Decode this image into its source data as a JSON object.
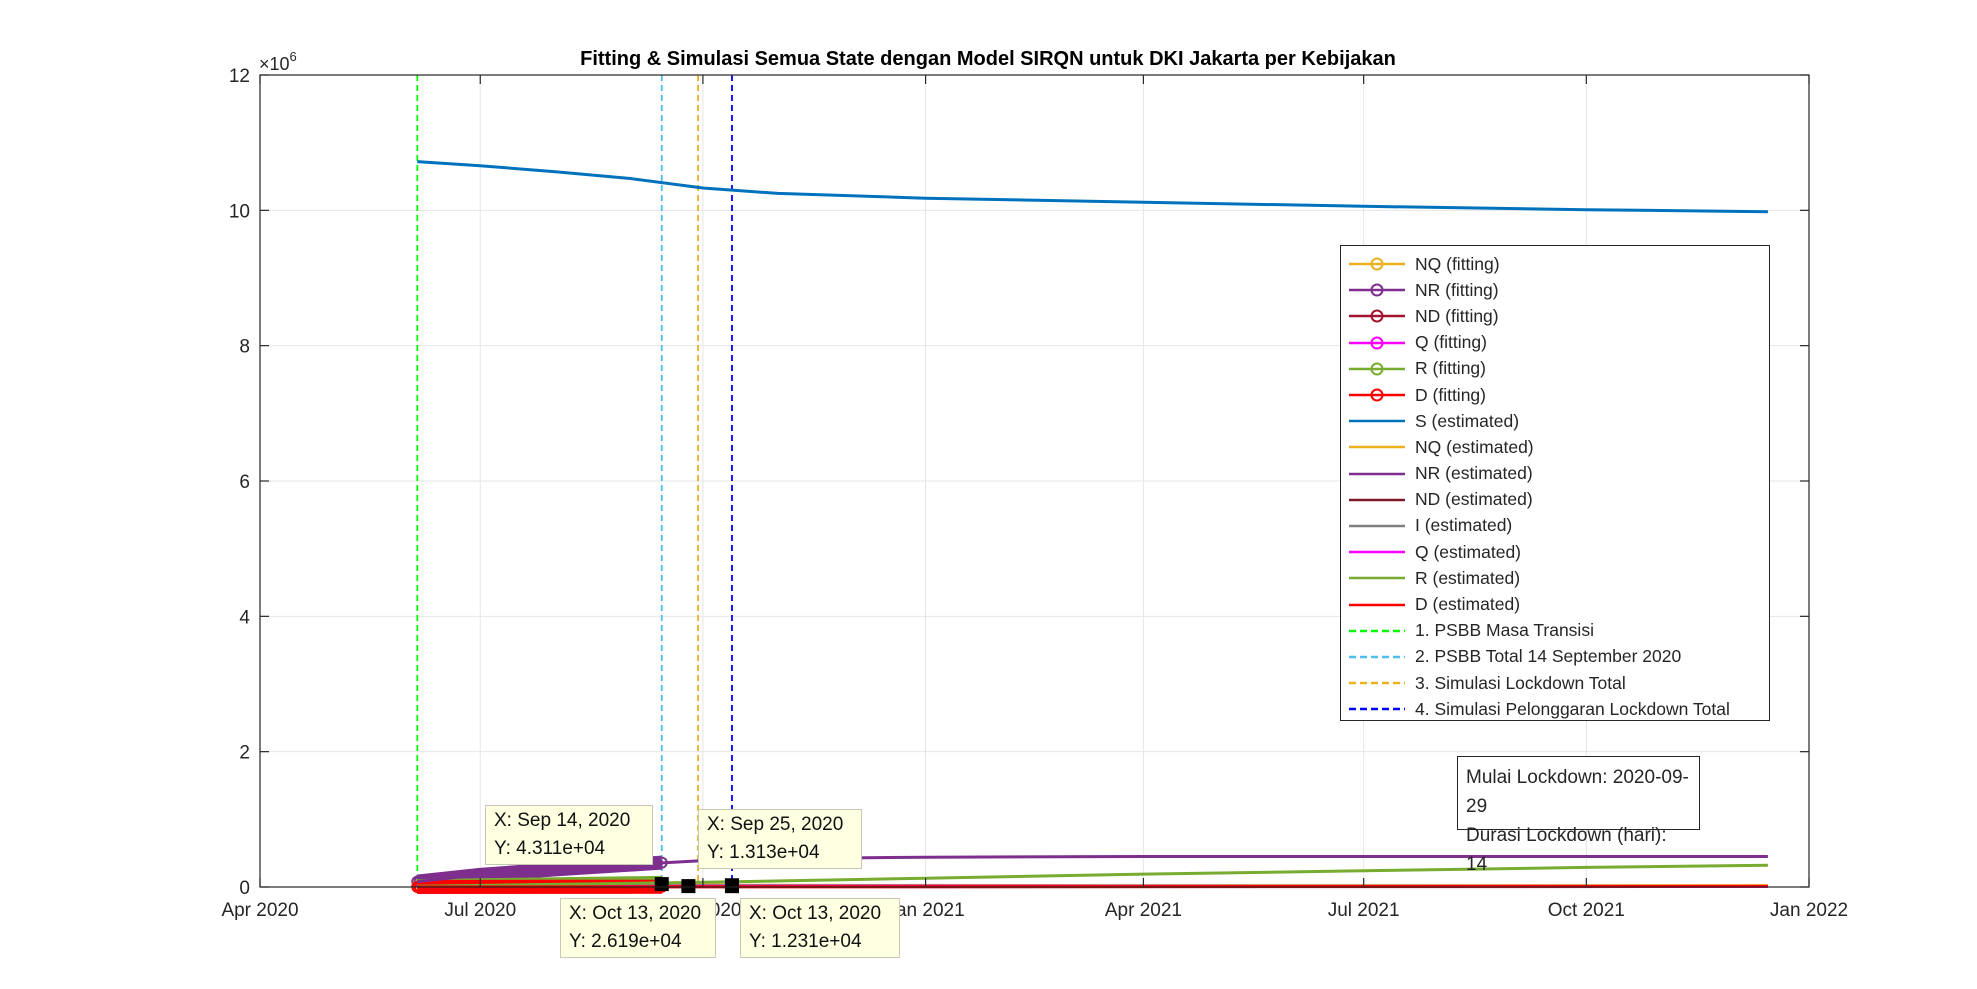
{
  "chart_data": {
    "type": "line",
    "title": "Fitting & Simulasi Semua State dengan Model SIRQN untuk DKI Jakarta per Kebijakan",
    "xlabel": "",
    "ylabel": "",
    "y_exponent_label": "×10",
    "y_exponent_power": "6",
    "xlim": [
      "2020-04-01",
      "2022-01-01"
    ],
    "ylim": [
      0,
      12
    ],
    "grid": true,
    "x_ticks": [
      {
        "date": "2020-04-01",
        "label": "Apr 2020"
      },
      {
        "date": "2020-07-01",
        "label": "Jul 2020"
      },
      {
        "date": "2020-10-01",
        "label": "Oct 2020"
      },
      {
        "date": "2021-01-01",
        "label": "Jan 2021"
      },
      {
        "date": "2021-04-01",
        "label": "Apr 2021"
      },
      {
        "date": "2021-07-01",
        "label": "Jul 2021"
      },
      {
        "date": "2021-10-01",
        "label": "Oct 2021"
      },
      {
        "date": "2022-01-01",
        "label": "Jan 2022"
      }
    ],
    "y_ticks": [
      0,
      2,
      4,
      6,
      8,
      10,
      12
    ],
    "fitting_series": [
      {
        "name": "NQ (fitting)",
        "color": "#EDB120",
        "x": [
          "2020-06-05",
          "2020-07-01",
          "2020-08-01",
          "2020-09-01",
          "2020-09-14"
        ],
        "y": [
          0.005,
          0.012,
          0.018,
          0.022,
          0.024
        ]
      },
      {
        "name": "NR (fitting)",
        "color": "#7E2F8E",
        "x": [
          "2020-06-05",
          "2020-07-01",
          "2020-08-01",
          "2020-09-01",
          "2020-09-14"
        ],
        "y": [
          0.08,
          0.18,
          0.26,
          0.33,
          0.36
        ]
      },
      {
        "name": "ND (fitting)",
        "color": "#A2142F",
        "x": [
          "2020-06-05",
          "2020-07-01",
          "2020-08-01",
          "2020-09-01",
          "2020-09-14"
        ],
        "y": [
          0.002,
          0.003,
          0.004,
          0.005,
          0.006
        ]
      },
      {
        "name": "Q (fitting)",
        "color": "#FF00FF",
        "x": [
          "2020-06-05",
          "2020-07-01",
          "2020-08-01",
          "2020-09-01",
          "2020-09-14"
        ],
        "y": [
          0.005,
          0.008,
          0.01,
          0.012,
          0.013
        ]
      },
      {
        "name": "R (fitting)",
        "color": "#77AC30",
        "x": [
          "2020-06-05",
          "2020-07-01",
          "2020-08-01",
          "2020-09-01",
          "2020-09-14"
        ],
        "y": [
          0.01,
          0.025,
          0.04,
          0.055,
          0.06
        ]
      },
      {
        "name": "D (fitting)",
        "color": "#FF0000",
        "x": [
          "2020-06-05",
          "2020-07-01",
          "2020-08-01",
          "2020-09-01",
          "2020-09-14"
        ],
        "y": [
          0.001,
          0.002,
          0.003,
          0.003,
          0.004
        ]
      }
    ],
    "estimated_series": [
      {
        "name": "S (estimated)",
        "color": "#0072BD",
        "x": [
          "2020-06-05",
          "2020-07-01",
          "2020-08-01",
          "2020-09-01",
          "2020-10-01",
          "2020-11-01",
          "2021-01-01",
          "2021-04-01",
          "2021-07-01",
          "2021-10-01",
          "2021-12-15"
        ],
        "y": [
          10.72,
          10.66,
          10.57,
          10.47,
          10.33,
          10.25,
          10.18,
          10.12,
          10.06,
          10.01,
          9.98
        ]
      },
      {
        "name": "NQ (estimated)",
        "color": "#EDB120",
        "x": [
          "2020-06-05",
          "2020-09-14",
          "2020-10-13",
          "2021-04-01",
          "2021-12-15"
        ],
        "y": [
          0.005,
          0.043,
          0.026,
          0.02,
          0.018
        ]
      },
      {
        "name": "NR (estimated)",
        "color": "#7E2F8E",
        "x": [
          "2020-06-05",
          "2020-07-01",
          "2020-08-01",
          "2020-09-01",
          "2020-10-01",
          "2020-11-01",
          "2021-01-01",
          "2021-04-01",
          "2021-07-01",
          "2021-10-01",
          "2021-12-15"
        ],
        "y": [
          0.08,
          0.18,
          0.26,
          0.33,
          0.39,
          0.42,
          0.44,
          0.45,
          0.45,
          0.45,
          0.45
        ]
      },
      {
        "name": "ND (estimated)",
        "color": "#7B1A2B",
        "x": [
          "2020-06-05",
          "2021-12-15"
        ],
        "y": [
          0.002,
          0.008
        ]
      },
      {
        "name": "I (estimated)",
        "color": "#808080",
        "x": [
          "2020-06-05",
          "2020-10-01",
          "2021-12-15"
        ],
        "y": [
          0.005,
          0.02,
          0.008
        ]
      },
      {
        "name": "Q (estimated)",
        "color": "#FF00FF",
        "x": [
          "2020-06-05",
          "2020-10-13",
          "2021-12-15"
        ],
        "y": [
          0.005,
          0.0123,
          0.008
        ]
      },
      {
        "name": "R (estimated)",
        "color": "#77AC30",
        "x": [
          "2020-06-05",
          "2020-10-01",
          "2021-01-01",
          "2021-04-01",
          "2021-07-01",
          "2021-10-01",
          "2021-12-15"
        ],
        "y": [
          0.01,
          0.07,
          0.13,
          0.19,
          0.24,
          0.29,
          0.32
        ]
      },
      {
        "name": "D (estimated)",
        "color": "#FF0000",
        "x": [
          "2020-06-05",
          "2021-12-15"
        ],
        "y": [
          0.001,
          0.01
        ]
      }
    ],
    "vertical_lines": [
      {
        "name": "1. PSBB Masa Transisi",
        "color": "#00FF00",
        "date": "2020-06-05"
      },
      {
        "name": "2. PSBB Total 14 September 2020",
        "color": "#4DBEEE",
        "date": "2020-09-14"
      },
      {
        "name": "3. Simulasi Lockdown Total",
        "color": "#EDB120",
        "date": "2020-09-29"
      },
      {
        "name": "4. Simulasi Pelonggaran Lockdown Total",
        "color": "#0000FF",
        "date": "2020-10-13"
      }
    ],
    "datatips": [
      {
        "x_label": "X: Sep 14, 2020",
        "y_label": "Y: 4.311e+04",
        "date": "2020-09-14",
        "value": 0.04311
      },
      {
        "x_label": "X: Sep 25, 2020",
        "y_label": "Y: 1.313e+04",
        "date": "2020-09-25",
        "value": 0.01313
      },
      {
        "x_label": "X: Oct 13, 2020",
        "y_label": "Y: 2.619e+04",
        "date": "2020-10-13",
        "value": 0.02619
      },
      {
        "x_label": "X: Oct 13, 2020",
        "y_label": "Y: 1.231e+04",
        "date": "2020-10-13",
        "value": 0.01231
      }
    ],
    "annotation": {
      "line1": "Mulai Lockdown: 2020-09-29",
      "line2": "Durasi Lockdown (hari): 14"
    },
    "legend_placement": "right"
  }
}
